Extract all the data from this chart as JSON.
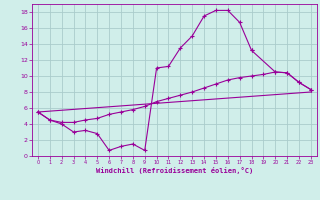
{
  "background_color": "#d0eeea",
  "grid_color": "#aacccc",
  "line_color": "#990099",
  "xlim": [
    -0.5,
    23.5
  ],
  "ylim": [
    0,
    19
  ],
  "ytick_values": [
    0,
    2,
    4,
    6,
    8,
    10,
    12,
    14,
    16,
    18
  ],
  "xlabel": "Windchill (Refroidissement éolien,°C)",
  "series1_x": [
    0,
    1,
    2,
    3,
    4,
    5,
    6,
    7,
    8,
    9,
    10,
    11,
    12,
    13,
    14,
    15,
    16,
    17,
    18
  ],
  "series1_y": [
    5.5,
    4.5,
    4.0,
    3.0,
    3.2,
    2.8,
    0.7,
    1.2,
    1.5,
    0.7,
    11.0,
    11.2,
    13.5,
    15.0,
    17.5,
    18.2,
    18.2,
    16.7,
    13.2
  ],
  "series2_x": [
    0,
    1,
    2,
    3,
    4,
    5,
    6,
    7,
    8,
    9,
    10,
    11,
    12,
    13,
    14,
    15,
    16,
    17,
    18,
    19,
    20,
    21,
    22,
    23
  ],
  "series2_y": [
    5.5,
    4.5,
    4.2,
    4.2,
    4.5,
    4.7,
    5.2,
    5.5,
    5.8,
    6.2,
    6.8,
    7.2,
    7.6,
    8.0,
    8.5,
    9.0,
    9.5,
    9.8,
    10.0,
    10.2,
    10.5,
    10.4,
    9.2,
    8.3
  ],
  "series3_x": [
    0,
    23
  ],
  "series3_y": [
    5.5,
    8.0
  ],
  "series4_x": [
    18,
    20,
    21,
    22,
    23
  ],
  "series4_y": [
    13.2,
    10.5,
    10.4,
    9.2,
    8.3
  ]
}
